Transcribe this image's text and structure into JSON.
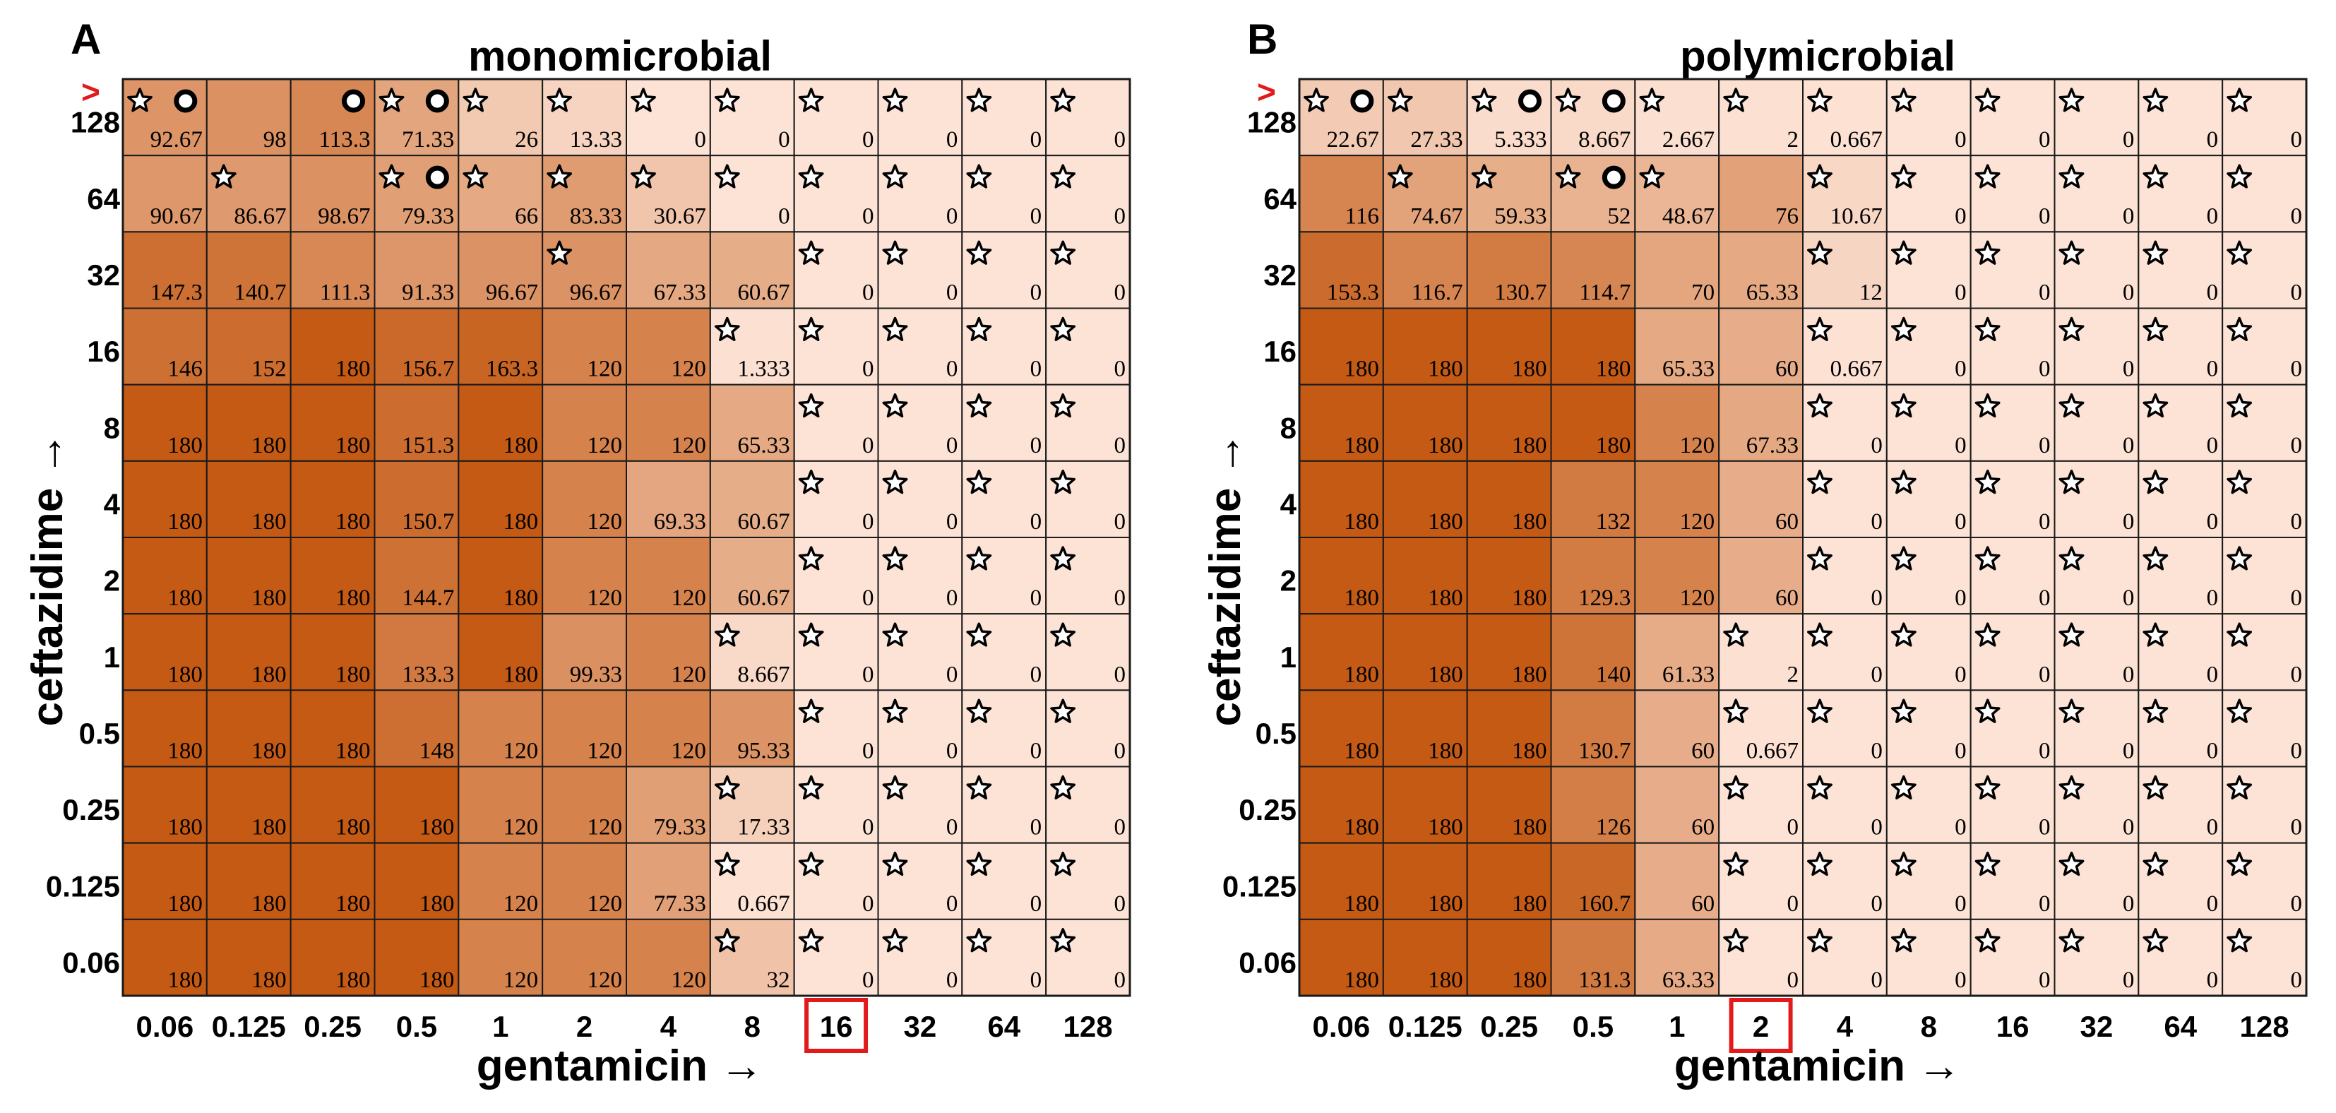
{
  "colors": {
    "background": "#ffffff",
    "grid_line": "#1a1a1a",
    "scale_low": "#fde3d6",
    "scale_high": "#c45a14",
    "highlight": "#e31a1c",
    "text": "#000000"
  },
  "legend": {
    "star": "star-marker",
    "circle": "circle-marker"
  },
  "chart_data": [
    {
      "type": "heatmap",
      "panel_label": "A",
      "title": "monomicrobial",
      "xlabel": "gentamicin →",
      "ylabel": "ceftazidime →",
      "x_ticks": [
        "0.06",
        "0.125",
        "0.25",
        "0.5",
        "1",
        "2",
        "4",
        "8",
        "16",
        "32",
        "64",
        "128"
      ],
      "y_ticks": [
        "128",
        "64",
        "32",
        "16",
        "8",
        "4",
        "2",
        "1",
        "0.5",
        "0.25",
        "0.125",
        "0.06"
      ],
      "y_top_marker": ">",
      "highlighted_x_tick": "16",
      "value_range": [
        0,
        180
      ],
      "values": [
        [
          "92.67",
          "98",
          "113.3",
          "71.33",
          "26",
          "13.33",
          "0",
          "0",
          "0",
          "0",
          "0",
          "0"
        ],
        [
          "90.67",
          "86.67",
          "98.67",
          "79.33",
          "66",
          "83.33",
          "30.67",
          "0",
          "0",
          "0",
          "0",
          "0"
        ],
        [
          "147.3",
          "140.7",
          "111.3",
          "91.33",
          "96.67",
          "96.67",
          "67.33",
          "60.67",
          "0",
          "0",
          "0",
          "0"
        ],
        [
          "146",
          "152",
          "180",
          "156.7",
          "163.3",
          "120",
          "120",
          "1.333",
          "0",
          "0",
          "0",
          "0"
        ],
        [
          "180",
          "180",
          "180",
          "151.3",
          "180",
          "120",
          "120",
          "65.33",
          "0",
          "0",
          "0",
          "0"
        ],
        [
          "180",
          "180",
          "180",
          "150.7",
          "180",
          "120",
          "69.33",
          "60.67",
          "0",
          "0",
          "0",
          "0"
        ],
        [
          "180",
          "180",
          "180",
          "144.7",
          "180",
          "120",
          "120",
          "60.67",
          "0",
          "0",
          "0",
          "0"
        ],
        [
          "180",
          "180",
          "180",
          "133.3",
          "180",
          "99.33",
          "120",
          "8.667",
          "0",
          "0",
          "0",
          "0"
        ],
        [
          "180",
          "180",
          "180",
          "148",
          "120",
          "120",
          "120",
          "95.33",
          "0",
          "0",
          "0",
          "0"
        ],
        [
          "180",
          "180",
          "180",
          "180",
          "120",
          "120",
          "79.33",
          "17.33",
          "0",
          "0",
          "0",
          "0"
        ],
        [
          "180",
          "180",
          "180",
          "180",
          "120",
          "120",
          "77.33",
          "0.667",
          "0",
          "0",
          "0",
          "0"
        ],
        [
          "180",
          "180",
          "180",
          "180",
          "120",
          "120",
          "120",
          "32",
          "0",
          "0",
          "0",
          "0"
        ]
      ],
      "stars": [
        [
          1,
          0,
          0,
          1,
          1,
          1,
          1,
          1,
          1,
          1,
          1,
          1
        ],
        [
          0,
          1,
          0,
          1,
          1,
          1,
          1,
          1,
          1,
          1,
          1,
          1
        ],
        [
          0,
          0,
          0,
          0,
          0,
          1,
          0,
          0,
          1,
          1,
          1,
          1
        ],
        [
          0,
          0,
          0,
          0,
          0,
          0,
          0,
          1,
          1,
          1,
          1,
          1
        ],
        [
          0,
          0,
          0,
          0,
          0,
          0,
          0,
          0,
          1,
          1,
          1,
          1
        ],
        [
          0,
          0,
          0,
          0,
          0,
          0,
          0,
          0,
          1,
          1,
          1,
          1
        ],
        [
          0,
          0,
          0,
          0,
          0,
          0,
          0,
          0,
          1,
          1,
          1,
          1
        ],
        [
          0,
          0,
          0,
          0,
          0,
          0,
          0,
          1,
          1,
          1,
          1,
          1
        ],
        [
          0,
          0,
          0,
          0,
          0,
          0,
          0,
          0,
          1,
          1,
          1,
          1
        ],
        [
          0,
          0,
          0,
          0,
          0,
          0,
          0,
          1,
          1,
          1,
          1,
          1
        ],
        [
          0,
          0,
          0,
          0,
          0,
          0,
          0,
          1,
          1,
          1,
          1,
          1
        ],
        [
          0,
          0,
          0,
          0,
          0,
          0,
          0,
          1,
          1,
          1,
          1,
          1
        ]
      ],
      "circles": [
        [
          1,
          0,
          1,
          1,
          0,
          0,
          0,
          0,
          0,
          0,
          0,
          0
        ],
        [
          0,
          0,
          0,
          1,
          0,
          0,
          0,
          0,
          0,
          0,
          0,
          0
        ],
        [
          0,
          0,
          0,
          0,
          0,
          0,
          0,
          0,
          0,
          0,
          0,
          0
        ],
        [
          0,
          0,
          0,
          0,
          0,
          0,
          0,
          0,
          0,
          0,
          0,
          0
        ],
        [
          0,
          0,
          0,
          0,
          0,
          0,
          0,
          0,
          0,
          0,
          0,
          0
        ],
        [
          0,
          0,
          0,
          0,
          0,
          0,
          0,
          0,
          0,
          0,
          0,
          0
        ],
        [
          0,
          0,
          0,
          0,
          0,
          0,
          0,
          0,
          0,
          0,
          0,
          0
        ],
        [
          0,
          0,
          0,
          0,
          0,
          0,
          0,
          0,
          0,
          0,
          0,
          0
        ],
        [
          0,
          0,
          0,
          0,
          0,
          0,
          0,
          0,
          0,
          0,
          0,
          0
        ],
        [
          0,
          0,
          0,
          0,
          0,
          0,
          0,
          0,
          0,
          0,
          0,
          0
        ],
        [
          0,
          0,
          0,
          0,
          0,
          0,
          0,
          0,
          0,
          0,
          0,
          0
        ],
        [
          0,
          0,
          0,
          0,
          0,
          0,
          0,
          0,
          0,
          0,
          0,
          0
        ]
      ]
    },
    {
      "type": "heatmap",
      "panel_label": "B",
      "title": "polymicrobial",
      "xlabel": "gentamicin →",
      "ylabel": "ceftazidime →",
      "x_ticks": [
        "0.06",
        "0.125",
        "0.25",
        "0.5",
        "1",
        "2",
        "4",
        "8",
        "16",
        "32",
        "64",
        "128"
      ],
      "y_ticks": [
        "128",
        "64",
        "32",
        "16",
        "8",
        "4",
        "2",
        "1",
        "0.5",
        "0.25",
        "0.125",
        "0.06"
      ],
      "y_top_marker": ">",
      "highlighted_x_tick": "2",
      "value_range": [
        0,
        180
      ],
      "values": [
        [
          "22.67",
          "27.33",
          "5.333",
          "8.667",
          "2.667",
          "2",
          "0.667",
          "0",
          "0",
          "0",
          "0",
          "0"
        ],
        [
          "116",
          "74.67",
          "59.33",
          "52",
          "48.67",
          "76",
          "10.67",
          "0",
          "0",
          "0",
          "0",
          "0"
        ],
        [
          "153.3",
          "116.7",
          "130.7",
          "114.7",
          "70",
          "65.33",
          "12",
          "0",
          "0",
          "0",
          "0",
          "0"
        ],
        [
          "180",
          "180",
          "180",
          "180",
          "65.33",
          "60",
          "0.667",
          "0",
          "0",
          "0",
          "0",
          "0"
        ],
        [
          "180",
          "180",
          "180",
          "180",
          "120",
          "67.33",
          "0",
          "0",
          "0",
          "0",
          "0",
          "0"
        ],
        [
          "180",
          "180",
          "180",
          "132",
          "120",
          "60",
          "0",
          "0",
          "0",
          "0",
          "0",
          "0"
        ],
        [
          "180",
          "180",
          "180",
          "129.3",
          "120",
          "60",
          "0",
          "0",
          "0",
          "0",
          "0",
          "0"
        ],
        [
          "180",
          "180",
          "180",
          "140",
          "61.33",
          "2",
          "0",
          "0",
          "0",
          "0",
          "0",
          "0"
        ],
        [
          "180",
          "180",
          "180",
          "130.7",
          "60",
          "0.667",
          "0",
          "0",
          "0",
          "0",
          "0",
          "0"
        ],
        [
          "180",
          "180",
          "180",
          "126",
          "60",
          "0",
          "0",
          "0",
          "0",
          "0",
          "0",
          "0"
        ],
        [
          "180",
          "180",
          "180",
          "160.7",
          "60",
          "0",
          "0",
          "0",
          "0",
          "0",
          "0",
          "0"
        ],
        [
          "180",
          "180",
          "180",
          "131.3",
          "63.33",
          "0",
          "0",
          "0",
          "0",
          "0",
          "0",
          "0"
        ]
      ],
      "stars": [
        [
          1,
          1,
          1,
          1,
          1,
          1,
          1,
          1,
          1,
          1,
          1,
          1
        ],
        [
          0,
          1,
          1,
          1,
          1,
          0,
          1,
          1,
          1,
          1,
          1,
          1
        ],
        [
          0,
          0,
          0,
          0,
          0,
          0,
          1,
          1,
          1,
          1,
          1,
          1
        ],
        [
          0,
          0,
          0,
          0,
          0,
          0,
          1,
          1,
          1,
          1,
          1,
          1
        ],
        [
          0,
          0,
          0,
          0,
          0,
          0,
          1,
          1,
          1,
          1,
          1,
          1
        ],
        [
          0,
          0,
          0,
          0,
          0,
          0,
          1,
          1,
          1,
          1,
          1,
          1
        ],
        [
          0,
          0,
          0,
          0,
          0,
          0,
          1,
          1,
          1,
          1,
          1,
          1
        ],
        [
          0,
          0,
          0,
          0,
          0,
          1,
          1,
          1,
          1,
          1,
          1,
          1
        ],
        [
          0,
          0,
          0,
          0,
          0,
          1,
          1,
          1,
          1,
          1,
          1,
          1
        ],
        [
          0,
          0,
          0,
          0,
          0,
          1,
          1,
          1,
          1,
          1,
          1,
          1
        ],
        [
          0,
          0,
          0,
          0,
          0,
          1,
          1,
          1,
          1,
          1,
          1,
          1
        ],
        [
          0,
          0,
          0,
          0,
          0,
          1,
          1,
          1,
          1,
          1,
          1,
          1
        ]
      ],
      "circles": [
        [
          1,
          0,
          1,
          1,
          0,
          0,
          0,
          0,
          0,
          0,
          0,
          0
        ],
        [
          0,
          0,
          0,
          1,
          0,
          0,
          0,
          0,
          0,
          0,
          0,
          0
        ],
        [
          0,
          0,
          0,
          0,
          0,
          0,
          0,
          0,
          0,
          0,
          0,
          0
        ],
        [
          0,
          0,
          0,
          0,
          0,
          0,
          0,
          0,
          0,
          0,
          0,
          0
        ],
        [
          0,
          0,
          0,
          0,
          0,
          0,
          0,
          0,
          0,
          0,
          0,
          0
        ],
        [
          0,
          0,
          0,
          0,
          0,
          0,
          0,
          0,
          0,
          0,
          0,
          0
        ],
        [
          0,
          0,
          0,
          0,
          0,
          0,
          0,
          0,
          0,
          0,
          0,
          0
        ],
        [
          0,
          0,
          0,
          0,
          0,
          0,
          0,
          0,
          0,
          0,
          0,
          0
        ],
        [
          0,
          0,
          0,
          0,
          0,
          0,
          0,
          0,
          0,
          0,
          0,
          0
        ],
        [
          0,
          0,
          0,
          0,
          0,
          0,
          0,
          0,
          0,
          0,
          0,
          0
        ],
        [
          0,
          0,
          0,
          0,
          0,
          0,
          0,
          0,
          0,
          0,
          0,
          0
        ],
        [
          0,
          0,
          0,
          0,
          0,
          0,
          0,
          0,
          0,
          0,
          0,
          0
        ]
      ]
    }
  ]
}
